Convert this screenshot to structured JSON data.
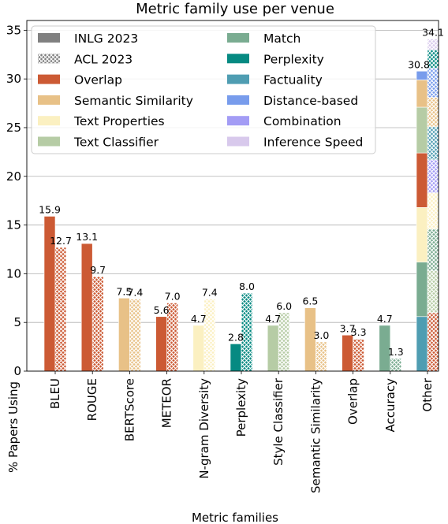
{
  "chart_data": {
    "type": "bar",
    "title": "Metric family use per venue",
    "xlabel": "Metric families",
    "ylabel": "% Papers Using",
    "ylim": [
      0,
      36
    ],
    "yticks": [
      0,
      5,
      10,
      15,
      20,
      25,
      30,
      35
    ],
    "grid": "horizontal",
    "legend_position": "top",
    "venues": [
      {
        "name": "INLG 2023",
        "swatch": "#808080",
        "pattern": "solid"
      },
      {
        "name": "ACL 2023",
        "swatch": "#808080",
        "pattern": "crosshatch"
      }
    ],
    "families": [
      {
        "name": "Overlap",
        "color": "#cc5a34"
      },
      {
        "name": "Semantic Similarity",
        "color": "#e8c187"
      },
      {
        "name": "Text Properties",
        "color": "#fbf0c1"
      },
      {
        "name": "Text Classifier",
        "color": "#b6cca5"
      },
      {
        "name": "Match",
        "color": "#7aac91"
      },
      {
        "name": "Perplexity",
        "color": "#068a82"
      },
      {
        "name": "Factuality",
        "color": "#4f9db2"
      },
      {
        "name": "Distance-based",
        "color": "#789cec"
      },
      {
        "name": "Combination",
        "color": "#a39cf5"
      },
      {
        "name": "Inference Speed",
        "color": "#d8c9ec"
      }
    ],
    "categories": [
      {
        "label": "BLEU",
        "family": "Overlap",
        "inlg": 15.9,
        "acl": 12.7,
        "inlg_label": "15.9",
        "acl_label": "12.7"
      },
      {
        "label": "ROUGE",
        "family": "Overlap",
        "inlg": 13.1,
        "acl": 9.7,
        "inlg_label": "13.1",
        "acl_label": "9.7"
      },
      {
        "label": "BERTScore",
        "family": "Semantic Similarity",
        "inlg": 7.5,
        "acl": 7.4,
        "inlg_label": "7.5",
        "acl_label": "7.4"
      },
      {
        "label": "METEOR",
        "family": "Overlap",
        "inlg": 5.6,
        "acl": 7.0,
        "inlg_label": "5.6",
        "acl_label": "7.0"
      },
      {
        "label": "N-gram Diversity",
        "family": "Text Properties",
        "inlg": 4.7,
        "acl": 7.4,
        "inlg_label": "4.7",
        "acl_label": "7.4"
      },
      {
        "label": "Perplexity",
        "family": "Perplexity",
        "inlg": 2.8,
        "acl": 8.0,
        "inlg_label": "2.8",
        "acl_label": "8.0"
      },
      {
        "label": "Style Classifier",
        "family": "Text Classifier",
        "inlg": 4.7,
        "acl": 6.0,
        "inlg_label": "4.7",
        "acl_label": "6.0"
      },
      {
        "label": "Semantic Similarity",
        "family": "Semantic Similarity",
        "inlg": 6.5,
        "acl": 3.0,
        "inlg_label": "6.5",
        "acl_label": "3.0"
      },
      {
        "label": "Overlap",
        "family": "Overlap",
        "inlg": 3.7,
        "acl": 3.3,
        "inlg_label": "3.7",
        "acl_label": "3.3"
      },
      {
        "label": "Accuracy",
        "family": "Match",
        "inlg": 4.7,
        "acl": 1.3,
        "inlg_label": "4.7",
        "acl_label": "1.3"
      }
    ],
    "other": {
      "label": "Other",
      "inlg_total_label": "30.8",
      "acl_total_label": "34.1",
      "inlg_stack": [
        {
          "family": "Factuality",
          "value": 5.6
        },
        {
          "family": "Match",
          "value": 5.6
        },
        {
          "family": "Text Properties",
          "value": 5.6
        },
        {
          "family": "Overlap",
          "value": 5.6
        },
        {
          "family": "Text Classifier",
          "value": 4.7
        },
        {
          "family": "Semantic Similarity",
          "value": 2.8
        },
        {
          "family": "Distance-based",
          "value": 0.9
        }
      ],
      "acl_stack": [
        {
          "family": "Overlap",
          "value": 6.0
        },
        {
          "family": "Text Classifier",
          "value": 4.3
        },
        {
          "family": "Match",
          "value": 4.3
        },
        {
          "family": "Text Properties",
          "value": 3.7
        },
        {
          "family": "Combination",
          "value": 3.4
        },
        {
          "family": "Factuality",
          "value": 3.4
        },
        {
          "family": "Semantic Similarity",
          "value": 3.0
        },
        {
          "family": "Distance-based",
          "value": 3.0
        },
        {
          "family": "Perplexity",
          "value": 1.9
        },
        {
          "family": "Inference Speed",
          "value": 1.1
        }
      ]
    }
  }
}
